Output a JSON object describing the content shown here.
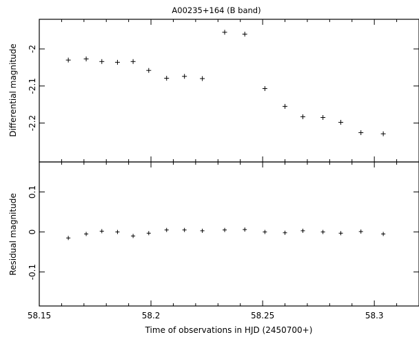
{
  "chart_data": [
    {
      "type": "scatter",
      "title": "A00235+164 (B band)",
      "xlabel": "Time of observations in HJD (2450700+)",
      "ylabel": "Differential magnitude",
      "xlim": [
        58.15,
        58.32
      ],
      "ylim": [
        -1.92,
        -2.305
      ],
      "y_inverted": true,
      "grid": false,
      "marker": "plus",
      "x_ticks": [
        58.15,
        58.2,
        58.25,
        58.3
      ],
      "x_tick_labels": [
        "58.15",
        "58.2",
        "58.25",
        "58.3"
      ],
      "y_ticks": [
        -2,
        -2.1,
        -2.2
      ],
      "y_tick_labels": [
        "-2",
        "-2.1",
        "-2.2"
      ],
      "x": [
        58.163,
        58.171,
        58.178,
        58.185,
        58.192,
        58.199,
        58.207,
        58.215,
        58.223,
        58.233,
        58.242,
        58.251,
        58.26,
        58.268,
        58.277,
        58.285,
        58.294,
        58.304
      ],
      "y": [
        -2.03,
        -2.027,
        -2.034,
        -2.036,
        -2.034,
        -2.058,
        -2.079,
        -2.074,
        -2.08,
        -1.955,
        -1.96,
        -2.107,
        -2.155,
        -2.183,
        -2.185,
        -2.198,
        -2.226,
        -2.229
      ]
    },
    {
      "type": "scatter",
      "xlabel": "Time of observations in HJD (2450700+)",
      "ylabel": "Residual magnitude",
      "xlim": [
        58.15,
        58.32
      ],
      "ylim": [
        0.175,
        -0.185
      ],
      "y_inverted": true,
      "grid": false,
      "marker": "plus",
      "x_ticks": [
        58.15,
        58.2,
        58.25,
        58.3
      ],
      "x_tick_labels": [
        "58.15",
        "58.2",
        "58.25",
        "58.3"
      ],
      "y_ticks": [
        0.1,
        0,
        -0.1
      ],
      "y_tick_labels": [
        "0.1",
        "0",
        "-0.1"
      ],
      "x": [
        58.163,
        58.171,
        58.178,
        58.185,
        58.192,
        58.199,
        58.207,
        58.215,
        58.223,
        58.233,
        58.242,
        58.251,
        58.26,
        58.268,
        58.277,
        58.285,
        58.294,
        58.304
      ],
      "y": [
        -0.015,
        -0.005,
        0.002,
        0.0,
        -0.01,
        -0.003,
        0.005,
        0.005,
        0.003,
        0.005,
        0.006,
        0.0,
        -0.002,
        0.003,
        0.0,
        -0.003,
        0.001,
        -0.005
      ]
    }
  ]
}
